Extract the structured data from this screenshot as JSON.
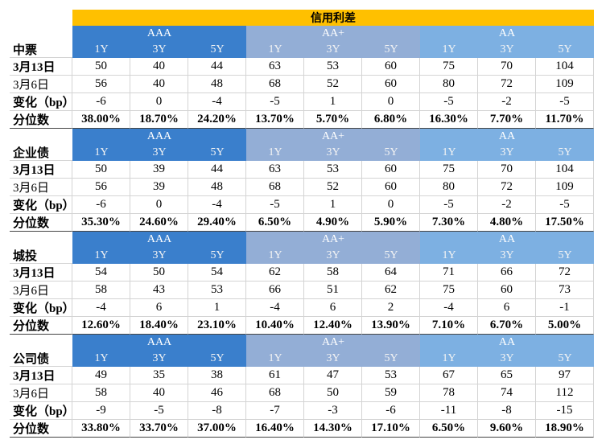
{
  "title": "信用利差",
  "sections": [
    {
      "name": "中票",
      "groups": [
        {
          "name": "AAA",
          "tenors": [
            "1Y",
            "3Y",
            "5Y"
          ]
        },
        {
          "name": "AA+",
          "tenors": [
            "1Y",
            "3Y",
            "5Y"
          ]
        },
        {
          "name": "AA",
          "tenors": [
            "1Y",
            "3Y",
            "5Y"
          ]
        }
      ],
      "rows": [
        {
          "label": "3月13日",
          "values": [
            50,
            40,
            44,
            63,
            53,
            60,
            75,
            70,
            104
          ]
        },
        {
          "label": "3月6日",
          "values": [
            56,
            40,
            48,
            68,
            52,
            60,
            80,
            72,
            109
          ]
        },
        {
          "label": "变化（bp）",
          "values": [
            -6,
            0,
            -4,
            -5,
            1,
            0,
            -5,
            -2,
            -5
          ]
        },
        {
          "label": "分位数",
          "values": [
            "38.00%",
            "18.70%",
            "24.20%",
            "13.70%",
            "5.70%",
            "6.80%",
            "16.30%",
            "7.70%",
            "11.70%"
          ]
        }
      ]
    },
    {
      "name": "企业债",
      "groups": [
        {
          "name": "AAA",
          "tenors": [
            "1Y",
            "3Y",
            "5Y"
          ]
        },
        {
          "name": "AA+",
          "tenors": [
            "1Y",
            "3Y",
            "5Y"
          ]
        },
        {
          "name": "AA",
          "tenors": [
            "1Y",
            "3Y",
            "5Y"
          ]
        }
      ],
      "rows": [
        {
          "label": "3月13日",
          "values": [
            50,
            39,
            44,
            63,
            53,
            60,
            75,
            70,
            104
          ]
        },
        {
          "label": "3月6日",
          "values": [
            56,
            39,
            48,
            68,
            52,
            60,
            80,
            72,
            109
          ]
        },
        {
          "label": "变化（bp）",
          "values": [
            -6,
            0,
            -4,
            -5,
            1,
            0,
            -5,
            -2,
            -5
          ]
        },
        {
          "label": "分位数",
          "values": [
            "35.30%",
            "24.60%",
            "29.40%",
            "6.50%",
            "4.90%",
            "5.90%",
            "7.30%",
            "4.80%",
            "17.50%"
          ]
        }
      ]
    },
    {
      "name": "城投",
      "groups": [
        {
          "name": "AAA",
          "tenors": [
            "1Y",
            "3Y",
            "5Y"
          ]
        },
        {
          "name": "AA+",
          "tenors": [
            "1Y",
            "3Y",
            "5Y"
          ]
        },
        {
          "name": "AA",
          "tenors": [
            "1Y",
            "3Y",
            "5Y"
          ]
        }
      ],
      "rows": [
        {
          "label": "3月13日",
          "values": [
            54,
            50,
            54,
            62,
            58,
            64,
            71,
            66,
            72
          ]
        },
        {
          "label": "3月6日",
          "values": [
            58,
            43,
            53,
            66,
            51,
            62,
            75,
            60,
            73
          ]
        },
        {
          "label": "变化（bp）",
          "values": [
            -4,
            6,
            1,
            -4,
            6,
            2,
            -4,
            6,
            -1
          ]
        },
        {
          "label": "分位数",
          "values": [
            "12.60%",
            "18.40%",
            "23.10%",
            "10.40%",
            "12.40%",
            "13.90%",
            "7.10%",
            "6.70%",
            "5.00%"
          ]
        }
      ]
    },
    {
      "name": "公司债",
      "groups": [
        {
          "name": "AAA",
          "tenors": [
            "1Y",
            "3Y",
            "5Y"
          ]
        },
        {
          "name": "AA+",
          "tenors": [
            "1Y",
            "3Y",
            "5Y"
          ]
        },
        {
          "name": "AA",
          "tenors": [
            "1Y",
            "3Y",
            "5Y"
          ]
        }
      ],
      "rows": [
        {
          "label": "3月13日",
          "values": [
            49,
            35,
            38,
            61,
            47,
            53,
            67,
            65,
            97
          ]
        },
        {
          "label": "3月6日",
          "values": [
            58,
            40,
            46,
            68,
            50,
            59,
            78,
            74,
            112
          ]
        },
        {
          "label": "变化（bp）",
          "values": [
            -9,
            -5,
            -8,
            -7,
            -3,
            -6,
            -11,
            -8,
            -15
          ]
        },
        {
          "label": "分位数",
          "values": [
            "33.80%",
            "33.70%",
            "37.00%",
            "16.40%",
            "14.30%",
            "17.10%",
            "6.50%",
            "9.60%",
            "18.90%"
          ]
        }
      ]
    }
  ]
}
